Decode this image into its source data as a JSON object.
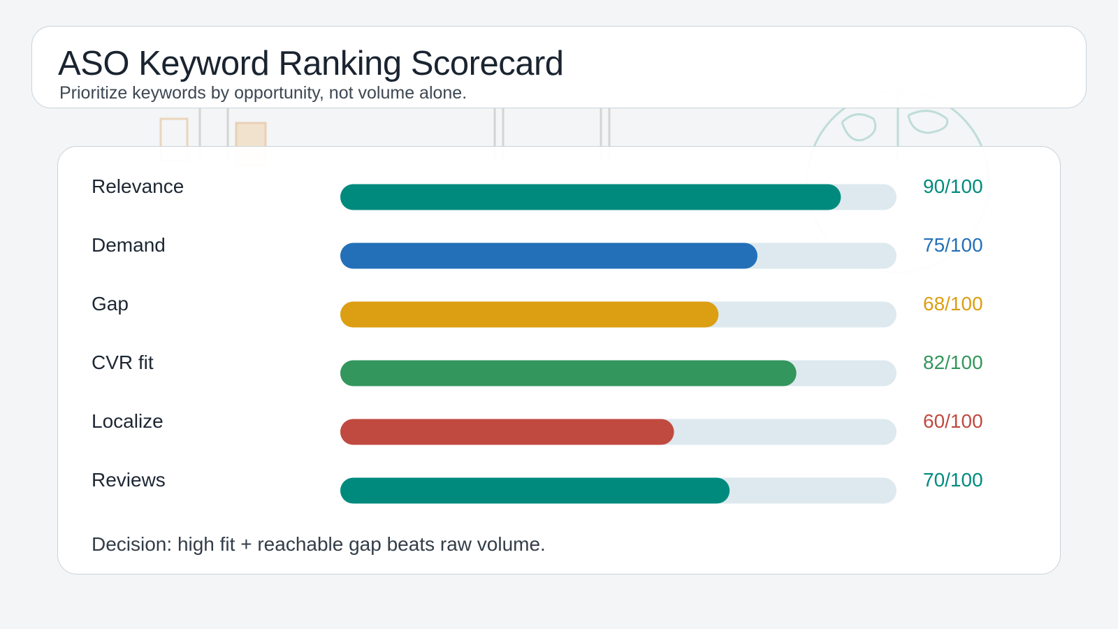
{
  "header": {
    "title": "ASO Keyword Ranking Scorecard",
    "subtitle": "Prioritize keywords by opportunity, not volume alone."
  },
  "footer": {
    "decision": "Decision: high fit + reachable gap beats raw volume."
  },
  "colors": {
    "track": "#dde9ee",
    "label_text": "#1d2733"
  },
  "chart_data": {
    "type": "bar",
    "orientation": "horizontal",
    "max": 100,
    "categories": [
      "Relevance",
      "Demand",
      "Gap",
      "CVR fit",
      "Localize",
      "Reviews"
    ],
    "values": [
      90,
      75,
      68,
      82,
      60,
      70
    ],
    "value_labels": [
      "90/100",
      "75/100",
      "68/100",
      "82/100",
      "60/100",
      "70/100"
    ],
    "colors": [
      "#008a7e",
      "#2370b8",
      "#dc9e12",
      "#33965c",
      "#c04a40",
      "#008a7e"
    ],
    "xlim": [
      0,
      100
    ],
    "grid": false,
    "legend": "none"
  }
}
